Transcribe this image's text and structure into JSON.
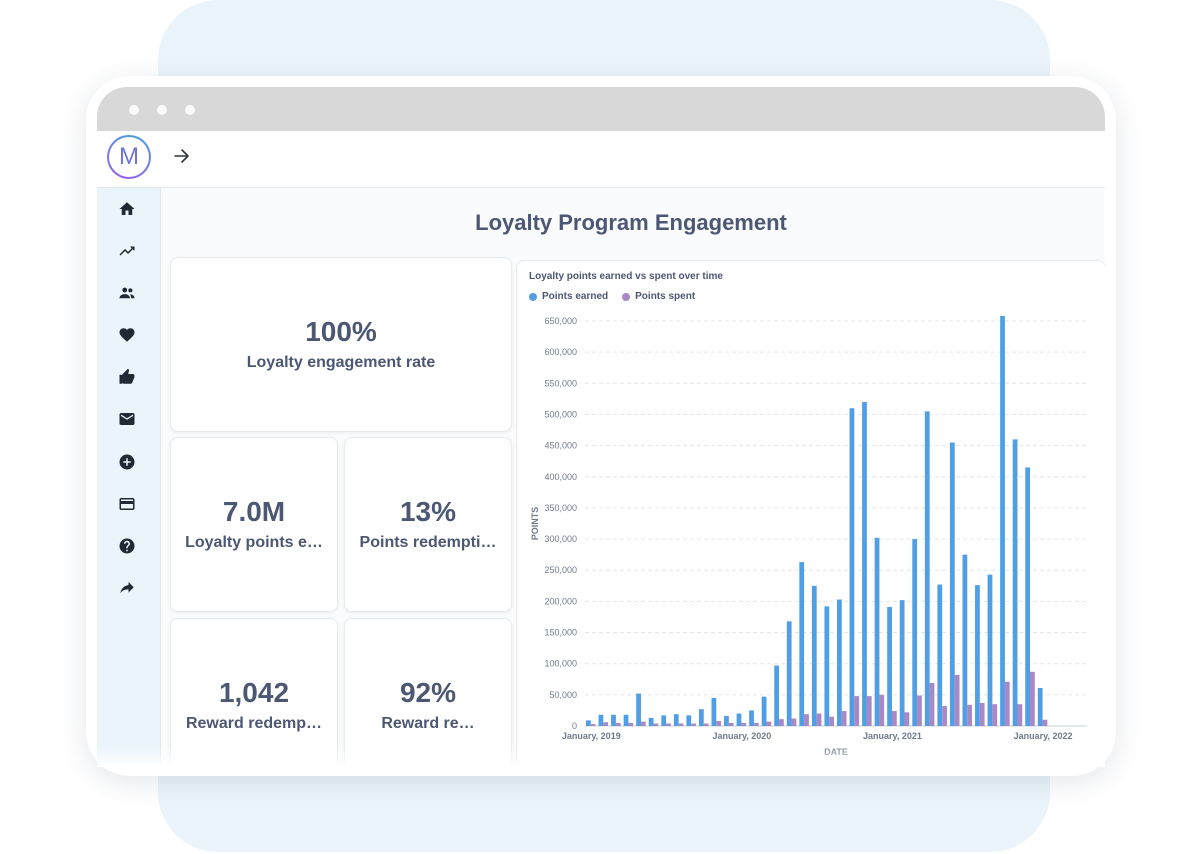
{
  "app": {
    "logo_letter": "M",
    "accent_color": "#509ee3",
    "secondary_color": "#a989c5"
  },
  "sidebar": {
    "items": [
      {
        "icon": "home-icon"
      },
      {
        "icon": "trend-icon"
      },
      {
        "icon": "people-icon"
      },
      {
        "icon": "heart-icon"
      },
      {
        "icon": "thumbs-up-icon"
      },
      {
        "icon": "mail-icon"
      },
      {
        "icon": "add-circle-icon"
      },
      {
        "icon": "credit-card-icon"
      },
      {
        "icon": "help-icon"
      },
      {
        "icon": "share-icon"
      }
    ]
  },
  "dashboard": {
    "title": "Loyalty Program Engagement",
    "cards": [
      {
        "value": "100%",
        "label": "Loyalty engagement rate"
      },
      {
        "value": "7.0M",
        "label": "Loyalty points e…"
      },
      {
        "value": "13%",
        "label": "Points redempti…"
      },
      {
        "value": "1,042",
        "label": "Reward redemp…"
      },
      {
        "value": "92%",
        "label": "Reward re…"
      }
    ]
  },
  "chart_data": {
    "type": "bar",
    "title": "Loyalty points earned vs spent over time",
    "xlabel": "DATE",
    "ylabel": "POINTS",
    "ylim": [
      0,
      650000
    ],
    "yticks": [
      0,
      50000,
      100000,
      150000,
      200000,
      250000,
      300000,
      350000,
      400000,
      450000,
      500000,
      550000,
      600000,
      650000
    ],
    "ytick_labels": [
      "0",
      "50,000",
      "100,000",
      "150,000",
      "200,000",
      "250,000",
      "300,000",
      "350,000",
      "400,000",
      "450,000",
      "500,000",
      "550,000",
      "600,000",
      "650,000"
    ],
    "xtick_labels": [
      "January, 2019",
      "January, 2020",
      "January, 2021",
      "January, 2022"
    ],
    "xtick_months": [
      0,
      12,
      24,
      36
    ],
    "grid": true,
    "legend_position": "top-left",
    "categories": [
      "2019-01",
      "2019-02",
      "2019-03",
      "2019-04",
      "2019-05",
      "2019-06",
      "2019-07",
      "2019-08",
      "2019-09",
      "2019-10",
      "2019-11",
      "2019-12",
      "2020-01",
      "2020-02",
      "2020-03",
      "2020-04",
      "2020-05",
      "2020-06",
      "2020-07",
      "2020-08",
      "2020-09",
      "2020-10",
      "2020-11",
      "2020-12",
      "2021-01",
      "2021-02",
      "2021-03",
      "2021-04",
      "2021-05",
      "2021-06",
      "2021-07",
      "2021-08",
      "2021-09",
      "2021-10",
      "2021-11",
      "2021-12",
      "2022-01",
      "2022-02",
      "2022-03",
      "2022-04"
    ],
    "series": [
      {
        "name": "Points earned",
        "color": "#509ee3",
        "values": [
          9000,
          18000,
          18000,
          18000,
          52000,
          13000,
          17000,
          19000,
          17000,
          27000,
          45000,
          16000,
          20000,
          25000,
          47000,
          97000,
          168000,
          263000,
          225000,
          192000,
          203000,
          510000,
          520000,
          302000,
          191000,
          202000,
          300000,
          505000,
          227000,
          455000,
          275000,
          226000,
          243000,
          658000,
          460000,
          415000,
          61000,
          0,
          0,
          0
        ]
      },
      {
        "name": "Points spent",
        "color": "#a989c5",
        "values": [
          3000,
          6000,
          5000,
          5000,
          7000,
          4000,
          4000,
          4000,
          4000,
          4000,
          8000,
          5000,
          5000,
          5000,
          7000,
          11000,
          12000,
          19000,
          20000,
          15000,
          24000,
          48000,
          48000,
          50000,
          24000,
          22000,
          49000,
          69000,
          32000,
          82000,
          34000,
          37000,
          35000,
          71000,
          35000,
          87000,
          10000,
          0,
          0,
          0
        ]
      }
    ]
  }
}
